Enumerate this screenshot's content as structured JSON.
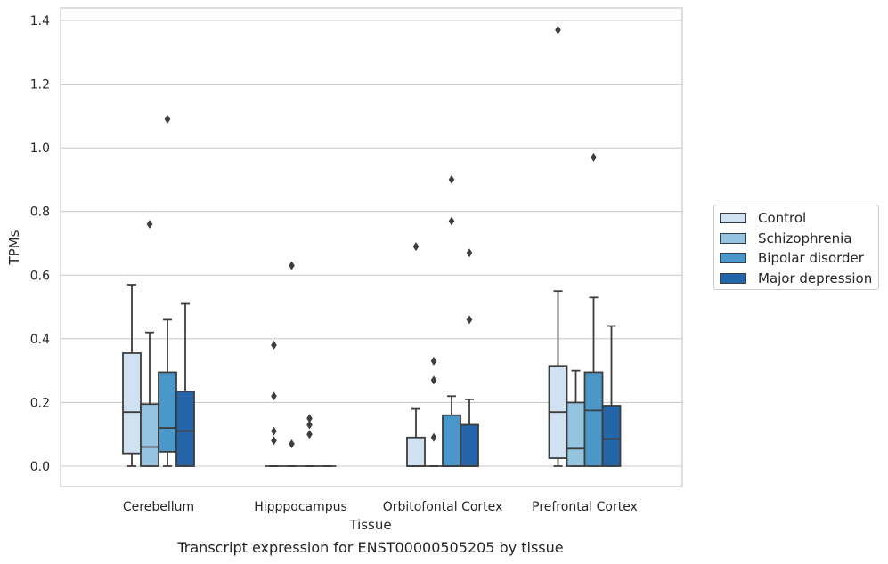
{
  "chart_data": {
    "type": "boxplot",
    "xlabel": "Tissue",
    "ylabel": "TPMs",
    "ylim": [
      -0.065,
      1.44
    ],
    "yticks": [
      "0.0",
      "0.2",
      "0.4",
      "0.6",
      "0.8",
      "1.0",
      "1.2",
      "1.4"
    ],
    "grid": true,
    "legend_position": "right, outside plot",
    "categories": [
      "Cerebellum",
      "Hipppocampus",
      "Orbitofontal Cortex",
      "Prefrontal Cortex"
    ],
    "series": [
      {
        "name": "Control",
        "color": "#d0e1f2",
        "boxes": [
          {
            "whislo": 0.0,
            "q1": 0.04,
            "med": 0.17,
            "q3": 0.355,
            "whishi": 0.57,
            "fliers": []
          },
          {
            "whislo": 0.0,
            "q1": 0.0,
            "med": 0.0,
            "q3": 0.0,
            "whishi": 0.0,
            "fliers": [
              0.38,
              0.22,
              0.11,
              0.08
            ]
          },
          {
            "whislo": 0.0,
            "q1": 0.0,
            "med": 0.0,
            "q3": 0.09,
            "whishi": 0.18,
            "fliers": [
              0.69
            ]
          },
          {
            "whislo": 0.0,
            "q1": 0.025,
            "med": 0.17,
            "q3": 0.315,
            "whishi": 0.55,
            "fliers": [
              1.37
            ]
          }
        ]
      },
      {
        "name": "Schizophrenia",
        "color": "#94c4df",
        "boxes": [
          {
            "whislo": 0.0,
            "q1": 0.0,
            "med": 0.06,
            "q3": 0.195,
            "whishi": 0.42,
            "fliers": [
              0.76
            ]
          },
          {
            "whislo": 0.0,
            "q1": 0.0,
            "med": 0.0,
            "q3": 0.0,
            "whishi": 0.0,
            "fliers": [
              0.63,
              0.07
            ]
          },
          {
            "whislo": 0.0,
            "q1": 0.0,
            "med": 0.0,
            "q3": 0.0,
            "whishi": 0.0,
            "fliers": [
              0.33,
              0.27,
              0.09
            ]
          },
          {
            "whislo": 0.0,
            "q1": 0.0,
            "med": 0.055,
            "q3": 0.2,
            "whishi": 0.3,
            "fliers": []
          }
        ]
      },
      {
        "name": "Bipolar disorder",
        "color": "#4a98c9",
        "boxes": [
          {
            "whislo": 0.0,
            "q1": 0.045,
            "med": 0.12,
            "q3": 0.295,
            "whishi": 0.46,
            "fliers": [
              1.09
            ]
          },
          {
            "whislo": 0.0,
            "q1": 0.0,
            "med": 0.0,
            "q3": 0.0,
            "whishi": 0.0,
            "fliers": [
              0.15,
              0.13,
              0.1
            ]
          },
          {
            "whislo": 0.0,
            "q1": 0.0,
            "med": 0.0,
            "q3": 0.16,
            "whishi": 0.22,
            "fliers": [
              0.9,
              0.77
            ]
          },
          {
            "whislo": 0.0,
            "q1": 0.0,
            "med": 0.175,
            "q3": 0.295,
            "whishi": 0.53,
            "fliers": [
              0.97
            ]
          }
        ]
      },
      {
        "name": "Major depression",
        "color": "#2464a8",
        "boxes": [
          {
            "whislo": 0.0,
            "q1": 0.0,
            "med": 0.11,
            "q3": 0.235,
            "whishi": 0.51,
            "fliers": []
          },
          {
            "whislo": 0.0,
            "q1": 0.0,
            "med": 0.0,
            "q3": 0.0,
            "whishi": 0.0,
            "fliers": []
          },
          {
            "whislo": 0.0,
            "q1": 0.0,
            "med": 0.0,
            "q3": 0.13,
            "whishi": 0.21,
            "fliers": [
              0.67,
              0.46
            ]
          },
          {
            "whislo": 0.0,
            "q1": 0.0,
            "med": 0.085,
            "q3": 0.19,
            "whishi": 0.44,
            "fliers": []
          }
        ]
      }
    ],
    "caption": "Transcript expression for ENST00000505205 by tissue"
  }
}
